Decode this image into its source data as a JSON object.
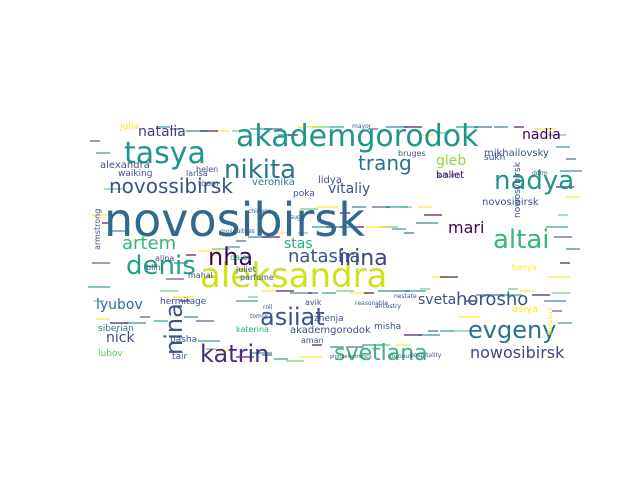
{
  "word_cloud": {
    "words": [
      {
        "text": "novosibirsk",
        "color": "#30688e"
      },
      {
        "text": "aleksandra",
        "color": "#d0e11c"
      },
      {
        "text": "akademgorodok",
        "color": "#1f968b"
      },
      {
        "text": "tasya",
        "color": "#1f968b"
      },
      {
        "text": "nikita",
        "color": "#2a788e"
      },
      {
        "text": "nadya",
        "color": "#1f968b"
      },
      {
        "text": "denis",
        "color": "#20a386"
      },
      {
        "text": "altai",
        "color": "#35b779"
      },
      {
        "text": "evgeny",
        "color": "#2c728e"
      },
      {
        "text": "asiiat",
        "color": "#3b528b"
      },
      {
        "text": "katrin",
        "color": "#472d7b"
      },
      {
        "text": "svetlana",
        "color": "#35b779"
      },
      {
        "text": "nina",
        "color": "#3b528b"
      },
      {
        "text": "nha",
        "color": "#440154"
      },
      {
        "text": "irina",
        "color": "#404387"
      },
      {
        "text": "natasha",
        "color": "#3b528b"
      },
      {
        "text": "trang",
        "color": "#2c728e"
      },
      {
        "text": "artem",
        "color": "#35b779"
      },
      {
        "text": "novossibirsk",
        "color": "#3b528b"
      },
      {
        "text": "natalia",
        "color": "#443983"
      },
      {
        "text": "nowosibirsk",
        "color": "#404387"
      },
      {
        "text": "horosho",
        "color": "#3b528b"
      },
      {
        "text": "mari",
        "color": "#440154"
      },
      {
        "text": "gleb",
        "color": "#90d743"
      },
      {
        "text": "nadia",
        "color": "#440154"
      },
      {
        "text": "vitaliy",
        "color": "#3b528b"
      },
      {
        "text": "stas",
        "color": "#27ad81"
      },
      {
        "text": "lyubov",
        "color": "#31688e"
      },
      {
        "text": "sveta",
        "color": "#3b528b"
      },
      {
        "text": "nick",
        "color": "#3e4989"
      },
      {
        "text": "akademgorodok",
        "color": "#3b528b"
      },
      {
        "text": "alexandra",
        "color": "#3b528b"
      },
      {
        "text": "veronika",
        "color": "#2a788e"
      },
      {
        "text": "lidya",
        "color": "#3b528b"
      },
      {
        "text": "ballet",
        "color": "#440154"
      },
      {
        "text": "zhenja",
        "color": "#3b528b"
      },
      {
        "text": "misha",
        "color": "#3b528b"
      },
      {
        "text": "mikhailovsky",
        "color": "#3b528b"
      },
      {
        "text": "novosibirsk",
        "color": "#3b528b"
      },
      {
        "text": "nowosybirsk",
        "color": "#3b528b"
      },
      {
        "text": "asiya",
        "color": "#fde725"
      },
      {
        "text": "banya",
        "color": "#fde725"
      },
      {
        "text": "siberian",
        "color": "#2a788e"
      },
      {
        "text": "hermitage",
        "color": "#3b528b"
      },
      {
        "text": "katerina",
        "color": "#27ad81"
      },
      {
        "text": "pasha",
        "color": "#3b528b"
      },
      {
        "text": "lubov",
        "color": "#5ec962"
      },
      {
        "text": "tair",
        "color": "#3b528b"
      },
      {
        "text": "helen",
        "color": "#3b528b"
      },
      {
        "text": "toom",
        "color": "#3b528b"
      },
      {
        "text": "julia",
        "color": "#fde725"
      },
      {
        "text": "waiking",
        "color": "#3b528b"
      },
      {
        "text": "larisa",
        "color": "#3b528b"
      },
      {
        "text": "blini",
        "color": "#3b528b"
      },
      {
        "text": "alina",
        "color": "#3b528b"
      },
      {
        "text": "armstrong",
        "color": "#3b528b"
      },
      {
        "text": "mahal",
        "color": "#3b528b"
      },
      {
        "text": "dalat",
        "color": "#27ad81"
      },
      {
        "text": "parfume",
        "color": "#3b528b"
      },
      {
        "text": "juliet",
        "color": "#3b528b"
      },
      {
        "text": "avik",
        "color": "#3b528b"
      },
      {
        "text": "aman",
        "color": "#3b528b"
      },
      {
        "text": "poka",
        "color": "#3b528b"
      },
      {
        "text": "sukh",
        "color": "#3b528b"
      },
      {
        "text": "bruges",
        "color": "#3b528b"
      },
      {
        "text": "mayor",
        "color": "#3b528b"
      },
      {
        "text": "sug",
        "color": "#3b528b"
      },
      {
        "text": "nestate",
        "color": "#3b528b"
      },
      {
        "text": "chinese",
        "color": "#3b528b"
      },
      {
        "text": "dorm",
        "color": "#3b528b"
      },
      {
        "text": "mosquitoes",
        "color": "#3b528b"
      },
      {
        "text": "literature",
        "color": "#fde725"
      },
      {
        "text": "autumn",
        "color": "#3b528b"
      },
      {
        "text": "ancestry",
        "color": "#3b528b"
      },
      {
        "text": "hospitality",
        "color": "#3b528b"
      },
      {
        "text": "durious",
        "color": "#3b528b"
      },
      {
        "text": "photoelectronics",
        "color": "#3b528b"
      },
      {
        "text": "reasonable",
        "color": "#3b528b"
      },
      {
        "text": "tomsk",
        "color": "#3b528b"
      },
      {
        "text": "roll",
        "color": "#3b528b"
      }
    ]
  }
}
